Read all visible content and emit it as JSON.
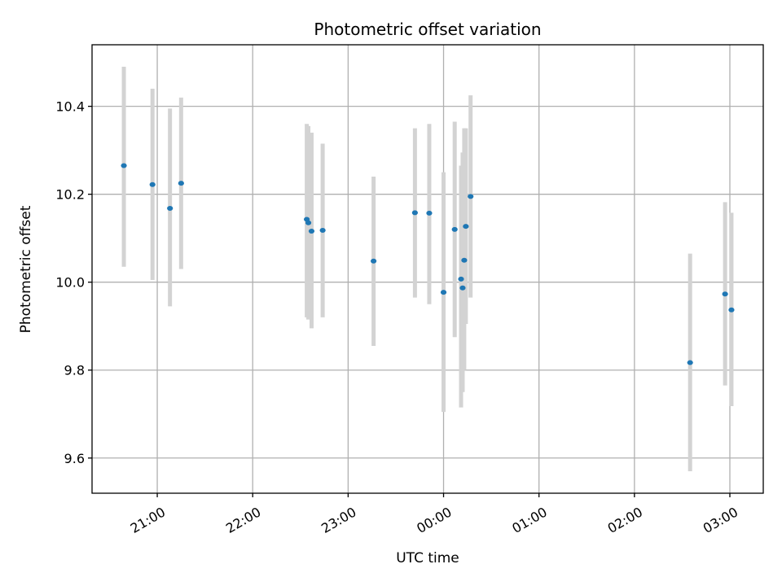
{
  "chart_data": {
    "type": "scatter",
    "title": "Photometric offset variation",
    "xlabel": "UTC time",
    "ylabel": "Photometric offset",
    "x_axis": {
      "kind": "time",
      "range": [
        "20:19",
        "03:21"
      ],
      "ticks": [
        "21:00",
        "22:00",
        "23:00",
        "00:00",
        "01:00",
        "02:00",
        "03:00"
      ]
    },
    "y_axis": {
      "range": [
        9.52,
        10.54
      ],
      "ticks": [
        9.6,
        9.8,
        10.0,
        10.2,
        10.4
      ],
      "tick_labels": [
        "9.6",
        "9.8",
        "10.0",
        "10.2",
        "10.4"
      ]
    },
    "grid": true,
    "marker_color": "#1f77b4",
    "errorbar_color": "#d3d3d3",
    "points": [
      {
        "t": "20:39",
        "y": 10.265,
        "lo": 10.035,
        "hi": 10.49
      },
      {
        "t": "20:57",
        "y": 10.222,
        "lo": 10.005,
        "hi": 10.44
      },
      {
        "t": "21:08",
        "y": 10.168,
        "lo": 9.945,
        "hi": 10.395
      },
      {
        "t": "21:15",
        "y": 10.225,
        "lo": 10.03,
        "hi": 10.42
      },
      {
        "t": "22:34",
        "y": 10.143,
        "lo": 9.92,
        "hi": 10.36
      },
      {
        "t": "22:35",
        "y": 10.135,
        "lo": 9.915,
        "hi": 10.355
      },
      {
        "t": "22:37",
        "y": 10.116,
        "lo": 9.895,
        "hi": 10.34
      },
      {
        "t": "22:44",
        "y": 10.118,
        "lo": 9.92,
        "hi": 10.315
      },
      {
        "t": "23:16",
        "y": 10.048,
        "lo": 9.855,
        "hi": 10.24
      },
      {
        "t": "23:42",
        "y": 10.158,
        "lo": 9.965,
        "hi": 10.35
      },
      {
        "t": "23:51",
        "y": 10.157,
        "lo": 9.95,
        "hi": 10.36
      },
      {
        "t": "00:00",
        "y": 9.977,
        "lo": 9.705,
        "hi": 10.25
      },
      {
        "t": "00:07",
        "y": 10.12,
        "lo": 9.875,
        "hi": 10.365
      },
      {
        "t": "00:11",
        "y": 10.007,
        "lo": 9.715,
        "hi": 10.265
      },
      {
        "t": "00:12",
        "y": 9.987,
        "lo": 9.75,
        "hi": 10.295
      },
      {
        "t": "00:13",
        "y": 10.05,
        "lo": 9.8,
        "hi": 10.35
      },
      {
        "t": "00:14",
        "y": 10.127,
        "lo": 9.905,
        "hi": 10.35
      },
      {
        "t": "00:17",
        "y": 10.195,
        "lo": 9.965,
        "hi": 10.425
      },
      {
        "t": "02:35",
        "y": 9.817,
        "lo": 9.57,
        "hi": 10.065
      },
      {
        "t": "02:57",
        "y": 9.973,
        "lo": 9.765,
        "hi": 10.182
      },
      {
        "t": "03:01",
        "y": 9.937,
        "lo": 9.718,
        "hi": 10.158
      }
    ]
  }
}
